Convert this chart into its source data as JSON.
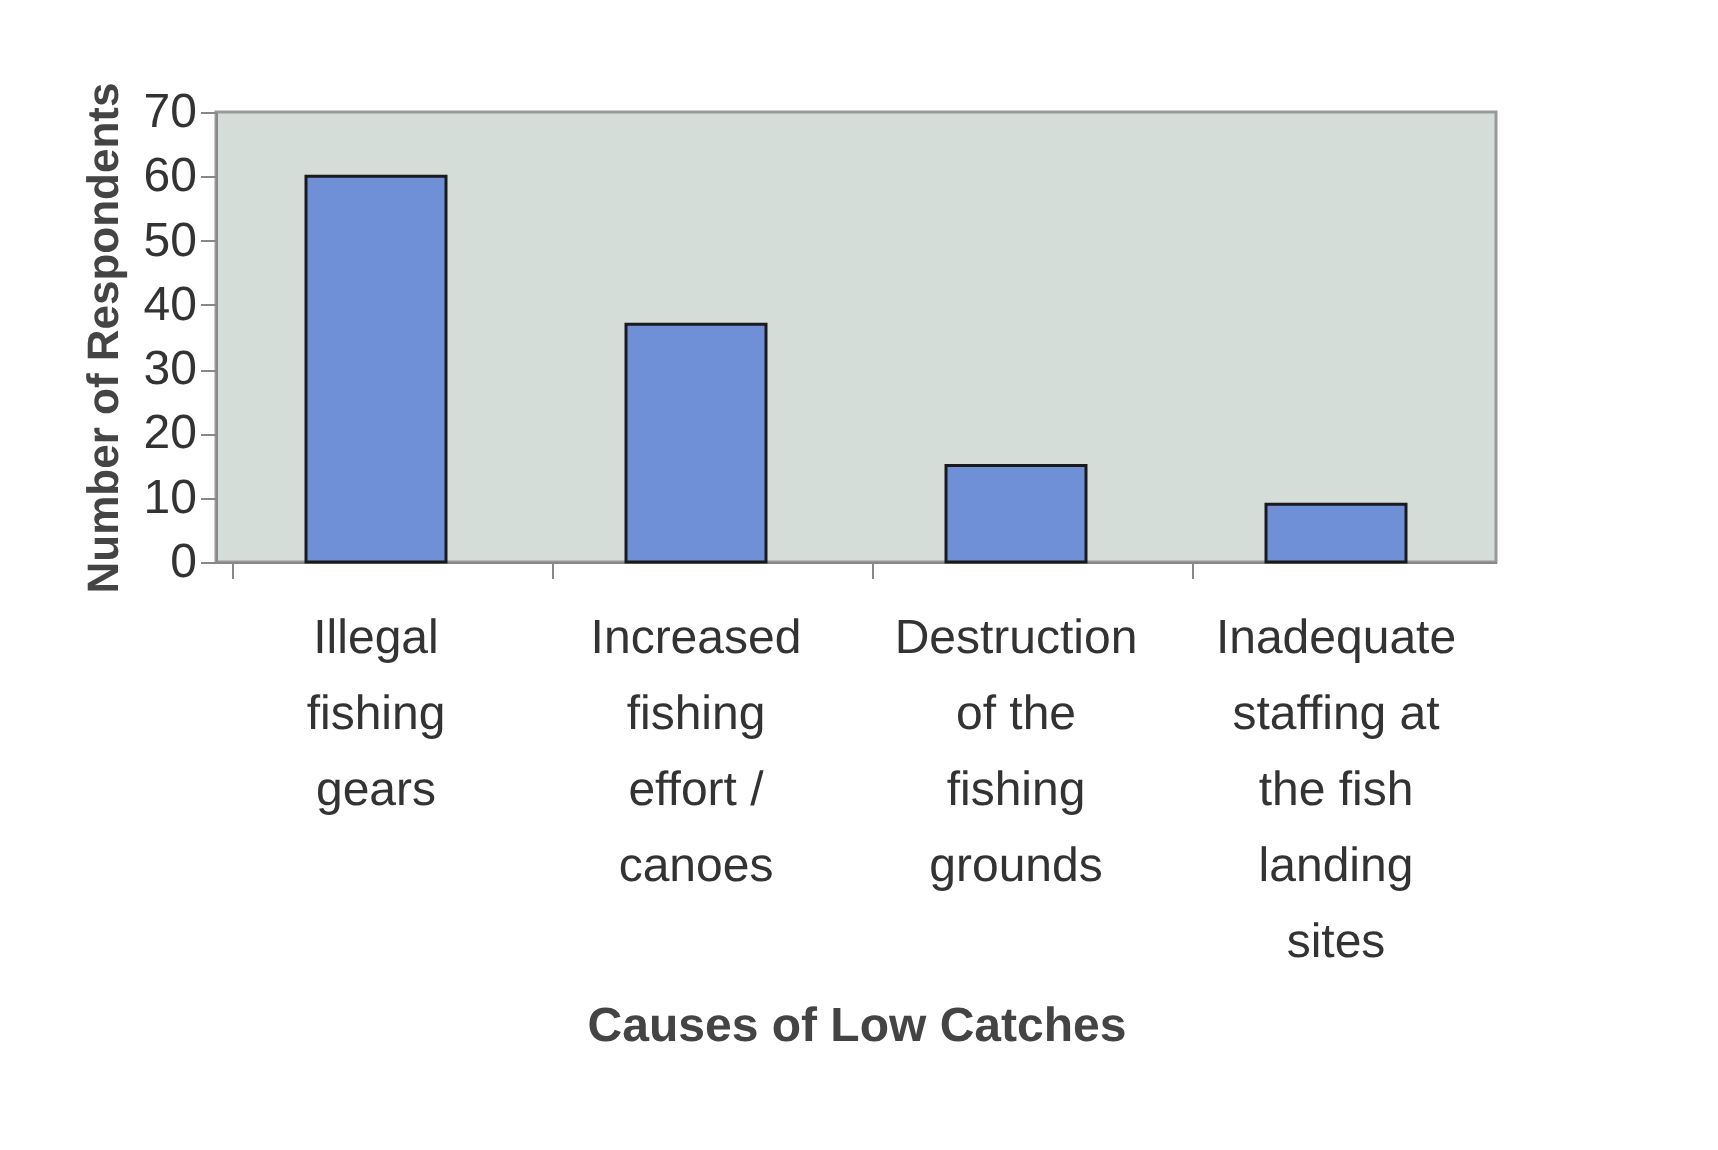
{
  "chart_data": {
    "type": "bar",
    "xlabel": "Causes of Low Catches",
    "ylabel": "Number of Respondents",
    "categories": [
      "Illegal fishing gears",
      "Increased fishing effort / canoes",
      "Destruction of the fishing grounds",
      "Inadequate staffing at the fish landing sites"
    ],
    "values": [
      60,
      37,
      15,
      9
    ],
    "color": "#6f8fd6",
    "ylim": [
      0,
      70
    ],
    "yticks": [
      0,
      10,
      20,
      30,
      40,
      50,
      60,
      70
    ],
    "grid": false
  }
}
